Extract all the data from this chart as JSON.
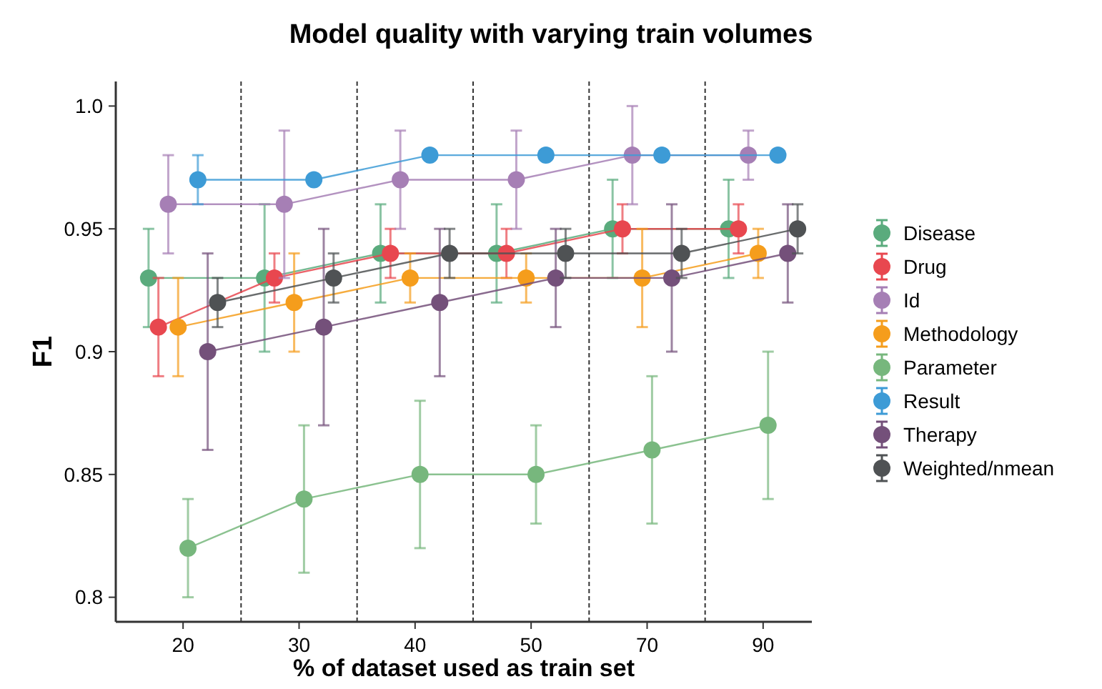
{
  "chart_data": {
    "type": "line",
    "title": "Model quality with varying train volumes",
    "xlabel": "% of dataset used as train set",
    "ylabel": "F1",
    "categories": [
      "20",
      "30",
      "40",
      "50",
      "70",
      "90"
    ],
    "ylim": [
      0.79,
      1.01
    ],
    "yticks": [
      {
        "value": 0.8,
        "label": "0.8"
      },
      0.85,
      {
        "value": 0.9,
        "label": "0.9"
      },
      0.95,
      {
        "value": 1,
        "label": "1.0"
      }
    ],
    "grid": "x",
    "legend": "right",
    "marker": "circle",
    "line_style": "solid",
    "series": [
      {
        "name": "Disease",
        "color": "#5aab7d",
        "values": [
          0.93,
          0.93,
          0.94,
          0.94,
          0.95,
          0.95
        ],
        "errors": [
          0.02,
          0.03,
          0.02,
          0.02,
          0.02,
          0.02
        ]
      },
      {
        "name": "Drug",
        "color": "#e8474f",
        "values": [
          0.91,
          0.93,
          0.94,
          0.94,
          0.95,
          0.95
        ],
        "errors": [
          0.02,
          0.01,
          0.01,
          0.01,
          0.01,
          0.01
        ]
      },
      {
        "name": "Id",
        "color": "#a67fb5",
        "values": [
          0.96,
          0.96,
          0.97,
          0.97,
          0.98,
          0.98
        ],
        "errors": [
          0.02,
          0.03,
          0.02,
          0.02,
          0.02,
          0.01
        ]
      },
      {
        "name": "Methodology",
        "color": "#f59d1c",
        "values": [
          0.91,
          0.92,
          0.93,
          0.93,
          0.93,
          0.94
        ],
        "errors": [
          0.02,
          0.02,
          0.01,
          0.01,
          0.02,
          0.01
        ]
      },
      {
        "name": "Parameter",
        "color": "#77b77d",
        "values": [
          0.82,
          0.84,
          0.85,
          0.85,
          0.86,
          0.87
        ],
        "errors": [
          0.02,
          0.03,
          0.03,
          0.02,
          0.03,
          0.03
        ]
      },
      {
        "name": "Result",
        "color": "#3d9bd6",
        "values": [
          0.97,
          0.97,
          0.98,
          0.98,
          0.98,
          0.98
        ],
        "errors": [
          0.01,
          null,
          null,
          null,
          null,
          null
        ]
      },
      {
        "name": "Therapy",
        "color": "#74507a",
        "values": [
          0.9,
          0.91,
          0.92,
          0.93,
          0.93,
          0.94
        ],
        "errors": [
          0.04,
          0.04,
          0.03,
          0.02,
          0.03,
          0.02
        ]
      },
      {
        "name": "Weighted/nmean",
        "color": "#4f5254",
        "values": [
          0.92,
          0.93,
          0.94,
          0.94,
          0.94,
          0.95
        ],
        "errors": [
          0.01,
          0.01,
          0.01,
          0.01,
          0.01,
          0.01
        ]
      }
    ]
  }
}
